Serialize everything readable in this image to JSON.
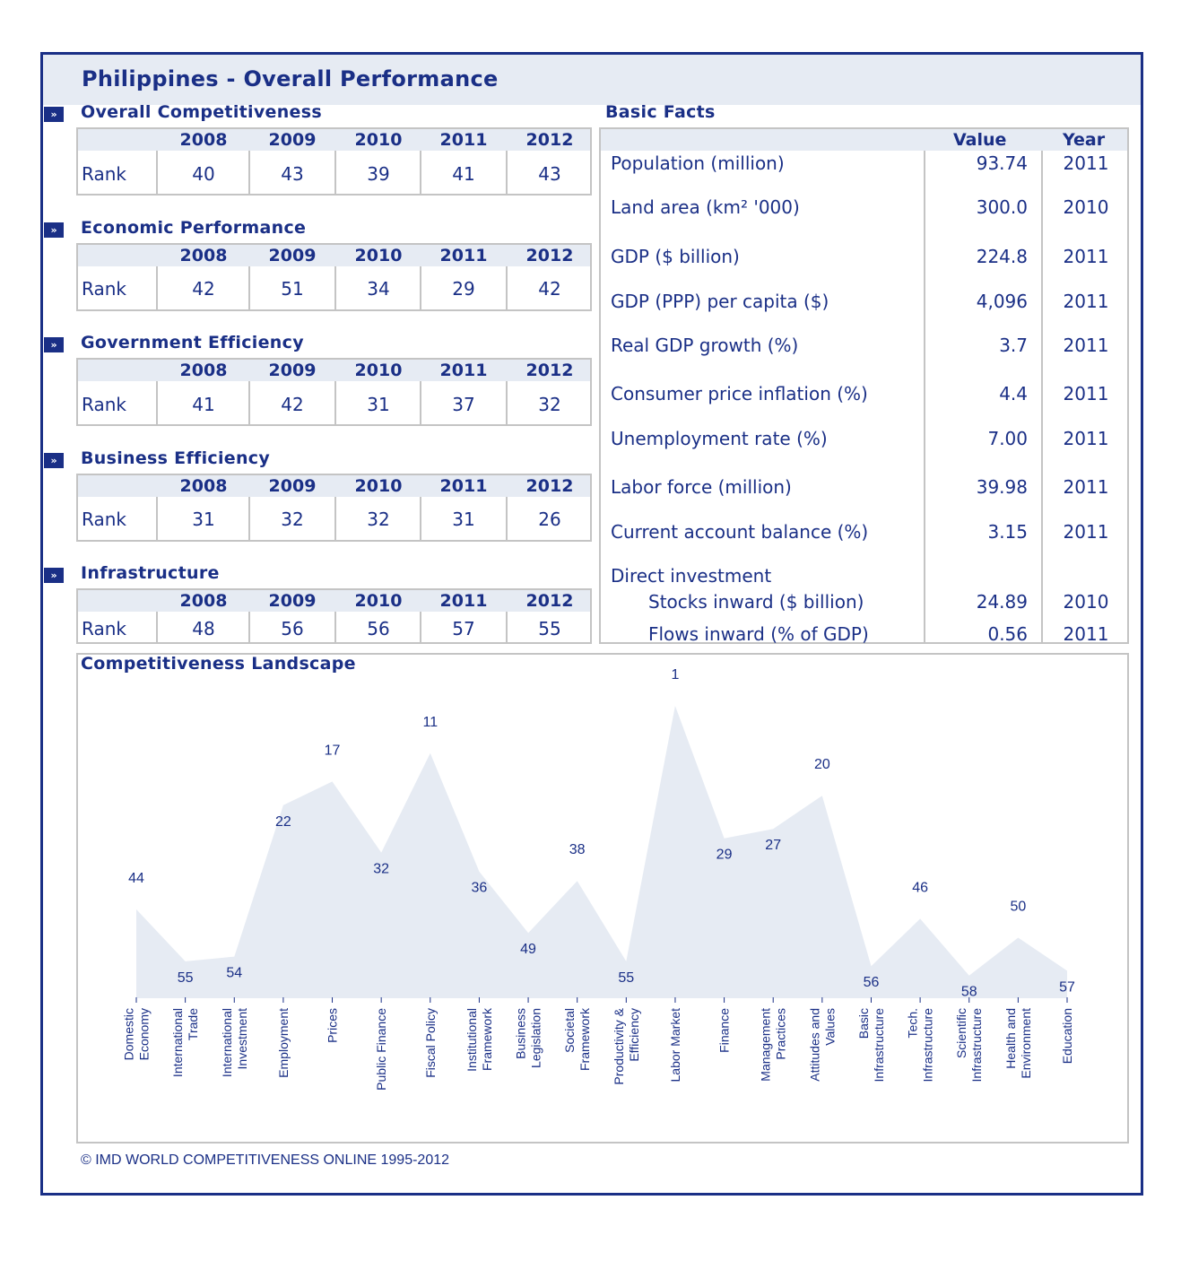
{
  "page": {
    "title": "Philippines - Overall Performance",
    "copyright": "© IMD WORLD COMPETITIVENESS ONLINE 1995-2012"
  },
  "marker_glyph": "»",
  "years": [
    "2008",
    "2009",
    "2010",
    "2011",
    "2012"
  ],
  "rank_label": "Rank",
  "sections": [
    {
      "title": "Overall Competitiveness",
      "ranks": [
        "40",
        "43",
        "39",
        "41",
        "43"
      ]
    },
    {
      "title": "Economic Performance",
      "ranks": [
        "42",
        "51",
        "34",
        "29",
        "42"
      ]
    },
    {
      "title": "Government Efficiency",
      "ranks": [
        "41",
        "42",
        "31",
        "37",
        "32"
      ]
    },
    {
      "title": "Business Efficiency",
      "ranks": [
        "31",
        "32",
        "32",
        "31",
        "26"
      ]
    },
    {
      "title": "Infrastructure",
      "ranks": [
        "48",
        "56",
        "56",
        "57",
        "55"
      ]
    }
  ],
  "basic_facts": {
    "title": "Basic Facts",
    "value_header": "Value",
    "year_header": "Year",
    "rows": [
      {
        "label": "Population (million)",
        "value": "93.74",
        "year": "2011"
      },
      {
        "label": "Land area (km² '000)",
        "value": "300.0",
        "year": "2010"
      },
      {
        "label": "GDP ($ billion)",
        "value": "224.8",
        "year": "2011"
      },
      {
        "label": "GDP (PPP) per capita ($)",
        "value": "4,096",
        "year": "2011"
      },
      {
        "label": "Real GDP growth (%)",
        "value": "3.7",
        "year": "2011"
      },
      {
        "label": "Consumer price inflation (%)",
        "value": "4.4",
        "year": "2011"
      },
      {
        "label": "Unemployment rate (%)",
        "value": "7.00",
        "year": "2011"
      },
      {
        "label": "Labor force (million)",
        "value": "39.98",
        "year": "2011"
      },
      {
        "label": "Current account balance (%)",
        "value": "3.15",
        "year": "2011"
      },
      {
        "label": "Direct investment",
        "value": "",
        "year": ""
      },
      {
        "label": "Stocks inward ($ billion)",
        "value": "24.89",
        "year": "2010"
      },
      {
        "label": "Flows inward (% of GDP)",
        "value": "0.56",
        "year": "2011"
      }
    ]
  },
  "chart_data": {
    "type": "area",
    "title": "Competitiveness Landscape",
    "categories": [
      [
        "Domestic",
        "Economy"
      ],
      [
        "International",
        "Trade"
      ],
      [
        "International",
        "Investment"
      ],
      [
        "Employment"
      ],
      [
        "Prices"
      ],
      [
        "Public Finance"
      ],
      [
        "Fiscal Policy"
      ],
      [
        "Institutional",
        "Framework"
      ],
      [
        "Business",
        "Legislation"
      ],
      [
        "Societal",
        "Framework"
      ],
      [
        "Productivity &",
        "Efficiency"
      ],
      [
        "Labor Market"
      ],
      [
        "Finance"
      ],
      [
        "Management",
        "Practices"
      ],
      [
        "Attitudes and",
        "Values"
      ],
      [
        "Basic",
        "Infrastructure"
      ],
      [
        "Tech.",
        "Infrastructure"
      ],
      [
        "Scientific",
        "Infrastructure"
      ],
      [
        "Health and",
        "Environment"
      ],
      [
        "Education"
      ]
    ],
    "values": [
      44,
      55,
      54,
      22,
      17,
      32,
      11,
      36,
      49,
      38,
      55,
      1,
      29,
      27,
      20,
      56,
      46,
      58,
      50,
      57
    ],
    "y_axis": "rank",
    "y_range": [
      1,
      59
    ],
    "y_inverted": true,
    "fill_color": "#e6ebf3",
    "text_color": "#1a2f86"
  }
}
